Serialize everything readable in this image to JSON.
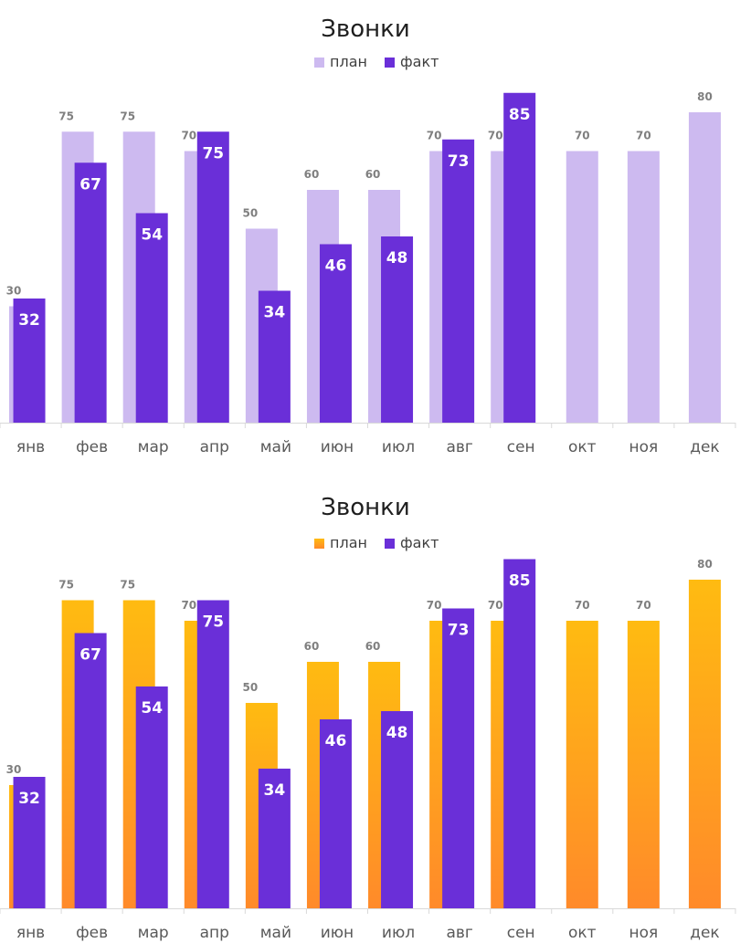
{
  "chart_data": [
    {
      "type": "bar",
      "title": "Звонки",
      "categories": [
        "янв",
        "фев",
        "мар",
        "апр",
        "май",
        "июн",
        "июл",
        "авг",
        "сен",
        "окт",
        "ноя",
        "дек"
      ],
      "series": [
        {
          "name": "план",
          "values": [
            30,
            75,
            75,
            70,
            50,
            60,
            60,
            70,
            70,
            70,
            70,
            80
          ],
          "color": "#cdbaf0"
        },
        {
          "name": "факт",
          "values": [
            32,
            67,
            54,
            75,
            34,
            46,
            48,
            73,
            85,
            null,
            null,
            null
          ],
          "color": "#6a2fd8"
        }
      ],
      "legend": "top-center",
      "ylim": [
        0,
        85
      ],
      "grid": false
    },
    {
      "type": "bar",
      "title": "Звонки",
      "categories": [
        "янв",
        "фев",
        "мар",
        "апр",
        "май",
        "июн",
        "июл",
        "авг",
        "сен",
        "окт",
        "ноя",
        "дек"
      ],
      "series": [
        {
          "name": "план",
          "values": [
            30,
            75,
            75,
            70,
            50,
            60,
            60,
            70,
            70,
            70,
            70,
            80
          ],
          "color": "#ffbb11",
          "color_bottom": "#ff8a2a"
        },
        {
          "name": "факт",
          "values": [
            32,
            67,
            54,
            75,
            34,
            46,
            48,
            73,
            85,
            null,
            null,
            null
          ],
          "color": "#6a2fd8"
        }
      ],
      "legend": "top-center",
      "ylim": [
        0,
        85
      ],
      "grid": false
    }
  ]
}
